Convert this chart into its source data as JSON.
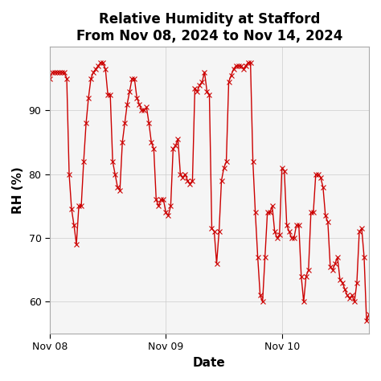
{
  "title_line1": "Relative Humidity at Stafford",
  "title_line2": "From Nov 08, 2024 to Nov 14, 2024",
  "xlabel": "Date",
  "ylabel": "RH (%)",
  "line_color": "#cc0000",
  "marker": "x",
  "marker_size": 4,
  "background_color": "#ffffff",
  "grid_color": "#cccccc",
  "ylim": [
    55,
    100
  ],
  "yticks": [
    60,
    70,
    80,
    90
  ],
  "data": [
    [
      0.0,
      95.0
    ],
    [
      0.5,
      96.0
    ],
    [
      1.0,
      96.0
    ],
    [
      1.5,
      96.0
    ],
    [
      2.0,
      96.0
    ],
    [
      2.5,
      96.0
    ],
    [
      3.0,
      96.0
    ],
    [
      3.5,
      95.0
    ],
    [
      4.0,
      80.0
    ],
    [
      4.5,
      74.5
    ],
    [
      5.0,
      72.0
    ],
    [
      5.5,
      69.0
    ],
    [
      6.0,
      75.0
    ],
    [
      6.5,
      75.0
    ],
    [
      7.0,
      82.0
    ],
    [
      7.5,
      88.0
    ],
    [
      8.0,
      92.0
    ],
    [
      8.5,
      95.0
    ],
    [
      9.0,
      96.0
    ],
    [
      9.5,
      96.5
    ],
    [
      10.0,
      97.0
    ],
    [
      10.5,
      97.5
    ],
    [
      11.0,
      97.5
    ],
    [
      11.5,
      96.5
    ],
    [
      12.0,
      92.5
    ],
    [
      12.5,
      92.5
    ],
    [
      13.0,
      82.0
    ],
    [
      13.5,
      80.0
    ],
    [
      14.0,
      78.0
    ],
    [
      14.5,
      77.5
    ],
    [
      15.0,
      85.0
    ],
    [
      15.5,
      88.0
    ],
    [
      16.0,
      91.0
    ],
    [
      16.5,
      93.0
    ],
    [
      17.0,
      95.0
    ],
    [
      17.5,
      95.0
    ],
    [
      18.0,
      92.0
    ],
    [
      18.5,
      91.0
    ],
    [
      19.0,
      90.0
    ],
    [
      19.5,
      90.0
    ],
    [
      20.0,
      90.5
    ],
    [
      20.5,
      88.0
    ],
    [
      21.0,
      85.0
    ],
    [
      21.5,
      84.0
    ],
    [
      22.0,
      76.0
    ],
    [
      22.5,
      75.0
    ],
    [
      23.0,
      76.0
    ],
    [
      23.5,
      76.0
    ],
    [
      24.0,
      74.0
    ],
    [
      24.5,
      73.5
    ],
    [
      25.0,
      75.0
    ],
    [
      25.5,
      84.0
    ],
    [
      26.0,
      84.5
    ],
    [
      26.5,
      85.5
    ],
    [
      27.0,
      80.0
    ],
    [
      27.5,
      79.5
    ],
    [
      28.0,
      80.0
    ],
    [
      28.5,
      79.0
    ],
    [
      29.0,
      78.5
    ],
    [
      29.5,
      79.0
    ],
    [
      30.0,
      93.5
    ],
    [
      30.5,
      93.0
    ],
    [
      31.0,
      94.0
    ],
    [
      31.5,
      94.5
    ],
    [
      32.0,
      96.0
    ],
    [
      32.5,
      93.0
    ],
    [
      33.0,
      92.5
    ],
    [
      33.5,
      71.5
    ],
    [
      34.0,
      71.0
    ],
    [
      34.5,
      66.0
    ],
    [
      35.0,
      71.0
    ],
    [
      35.5,
      79.0
    ],
    [
      36.0,
      81.0
    ],
    [
      36.5,
      82.0
    ],
    [
      37.0,
      94.5
    ],
    [
      37.5,
      95.5
    ],
    [
      38.0,
      96.5
    ],
    [
      38.5,
      97.0
    ],
    [
      39.0,
      97.0
    ],
    [
      39.5,
      97.0
    ],
    [
      40.0,
      96.5
    ],
    [
      40.5,
      97.0
    ],
    [
      41.0,
      97.5
    ],
    [
      41.5,
      97.5
    ],
    [
      42.0,
      82.0
    ],
    [
      42.5,
      74.0
    ],
    [
      43.0,
      67.0
    ],
    [
      43.5,
      61.0
    ],
    [
      44.0,
      60.0
    ],
    [
      44.5,
      67.0
    ],
    [
      45.0,
      74.0
    ],
    [
      45.5,
      74.0
    ],
    [
      46.0,
      75.0
    ],
    [
      46.5,
      71.0
    ],
    [
      47.0,
      70.0
    ],
    [
      47.5,
      70.5
    ],
    [
      48.0,
      81.0
    ],
    [
      48.5,
      80.5
    ],
    [
      49.0,
      72.0
    ],
    [
      49.5,
      71.0
    ],
    [
      50.0,
      70.0
    ],
    [
      50.5,
      70.0
    ],
    [
      51.0,
      72.0
    ],
    [
      51.5,
      72.0
    ],
    [
      52.0,
      64.0
    ],
    [
      52.5,
      60.0
    ],
    [
      53.0,
      64.0
    ],
    [
      53.5,
      65.0
    ],
    [
      54.0,
      74.0
    ],
    [
      54.5,
      74.0
    ],
    [
      55.0,
      80.0
    ],
    [
      55.5,
      80.0
    ],
    [
      56.0,
      79.5
    ],
    [
      56.5,
      78.0
    ],
    [
      57.0,
      73.5
    ],
    [
      57.5,
      72.5
    ],
    [
      58.0,
      65.5
    ],
    [
      58.5,
      65.0
    ],
    [
      59.0,
      66.0
    ],
    [
      59.5,
      67.0
    ],
    [
      60.0,
      63.5
    ],
    [
      60.5,
      63.0
    ],
    [
      61.0,
      62.0
    ],
    [
      61.5,
      61.0
    ],
    [
      62.0,
      60.5
    ],
    [
      62.5,
      61.0
    ],
    [
      63.0,
      60.0
    ],
    [
      63.5,
      63.0
    ],
    [
      64.0,
      71.0
    ],
    [
      64.5,
      71.5
    ],
    [
      65.0,
      67.0
    ],
    [
      65.5,
      57.0
    ],
    [
      66.0,
      58.0
    ]
  ]
}
